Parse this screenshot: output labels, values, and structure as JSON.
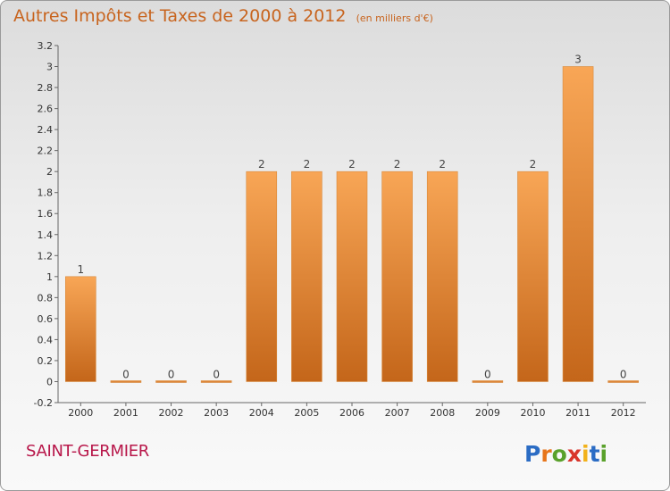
{
  "header": {
    "title": "Autres Impôts et Taxes de 2000 à 2012",
    "subtitle": "(en milliers d'€)"
  },
  "commune": "SAINT-GERMIER",
  "logo": {
    "text": "Proxiti",
    "colors": [
      "#2b6cc4",
      "#e7751a",
      "#5aa12b",
      "#d9352b",
      "#f2b21b",
      "#2b6cc4",
      "#5aa12b"
    ]
  },
  "colors": {
    "title": "#c8641e",
    "commune": "#b8174a",
    "bar_light": "#f8a656",
    "bar_dark": "#c4661a"
  },
  "chart_data": {
    "type": "bar",
    "categories": [
      "2000",
      "2001",
      "2002",
      "2003",
      "2004",
      "2005",
      "2006",
      "2007",
      "2008",
      "2009",
      "2010",
      "2011",
      "2012"
    ],
    "values": [
      1,
      0,
      0,
      0,
      2,
      2,
      2,
      2,
      2,
      0,
      2,
      3,
      0
    ],
    "data_labels": [
      "1",
      "0",
      "0",
      "0",
      "2",
      "2",
      "2",
      "2",
      "2",
      "0",
      "2",
      "3",
      "0"
    ],
    "title": "Autres Impôts et Taxes de 2000 à 2012",
    "subtitle": "(en milliers d'€)",
    "xlabel": "",
    "ylabel": "",
    "ylim": [
      -0.2,
      3.2
    ],
    "yticks": [
      -0.2,
      0,
      0.2,
      0.4,
      0.6,
      0.8,
      1,
      1.2,
      1.4,
      1.6,
      1.8,
      2,
      2.2,
      2.4,
      2.6,
      2.8,
      3,
      3.2
    ],
    "ytick_labels": [
      "-0.2",
      "0",
      "0.2",
      "0.4",
      "0.6",
      "0.8",
      "1",
      "1.2",
      "1.4",
      "1.6",
      "1.8",
      "2",
      "2.2",
      "2.4",
      "2.6",
      "2.8",
      "3",
      "3.2"
    ],
    "grid": false,
    "legend": "none"
  }
}
